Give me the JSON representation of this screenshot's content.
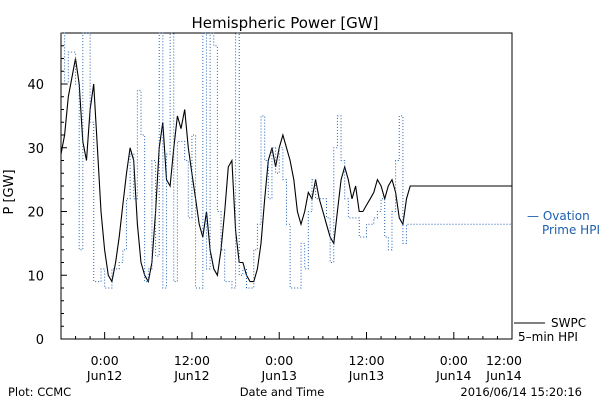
{
  "chart_data": {
    "type": "line",
    "title": "Hemispheric Power [GW]",
    "xlabel": "Date and Time",
    "ylabel": "P [GW]",
    "ylim": [
      0,
      48
    ],
    "yticks": [
      0,
      10,
      20,
      30,
      40
    ],
    "xlim": [
      0,
      62
    ],
    "xtick_hours": [
      6,
      18,
      30,
      42,
      54
    ],
    "xtick_labels": [
      [
        "0:00",
        "Jun12"
      ],
      [
        "12:00",
        "Jun12"
      ],
      [
        "0:00",
        "Jun13"
      ],
      [
        "12:00",
        "Jun13"
      ],
      [
        "0:00",
        "Jun14"
      ],
      [
        "12:00",
        "Jun14"
      ]
    ],
    "xtick_positions": [
      6,
      18,
      30,
      42,
      54,
      66
    ],
    "x_units": "hours since 2016-06-11 18:00",
    "grid": false,
    "series": [
      {
        "name": "SWPC 5-min HPI",
        "color": "#000000",
        "style": "solid",
        "x": [
          0,
          0.5,
          1,
          1.5,
          2,
          2.5,
          3,
          3.5,
          4,
          4.5,
          5,
          5.5,
          6,
          6.5,
          7,
          7.5,
          8,
          8.5,
          9,
          9.5,
          10,
          10.5,
          11,
          11.5,
          12,
          12.5,
          13,
          13.5,
          14,
          14.5,
          15,
          15.5,
          16,
          16.5,
          17,
          17.5,
          18,
          18.5,
          19,
          19.5,
          20,
          20.5,
          21,
          21.5,
          22,
          22.5,
          23,
          23.5,
          24,
          24.5,
          25,
          25.5,
          26,
          26.5,
          27,
          27.5,
          28,
          28.5,
          29,
          29.5,
          30,
          30.5,
          31,
          31.5,
          32,
          32.5,
          33,
          33.5,
          34,
          34.5,
          35,
          35.5,
          36,
          36.5,
          37,
          37.5,
          38,
          38.5,
          39,
          39.5,
          40,
          40.5,
          41,
          41.5,
          42,
          42.5,
          43,
          43.5,
          44,
          44.5,
          45,
          45.5,
          46,
          46.5,
          47,
          47.5,
          48,
          48.5,
          49,
          49.5,
          50,
          50.5,
          51,
          51.5,
          52,
          52.5,
          53,
          53.5,
          54,
          54.5,
          55,
          55.5,
          56,
          56.5,
          57,
          57.5,
          58,
          58.5,
          59,
          59.5,
          60,
          60.5,
          61,
          61.5,
          62
        ],
        "y": [
          29,
          32,
          38,
          41,
          44,
          40,
          31,
          28,
          36,
          40,
          30,
          20,
          14,
          10,
          9,
          12,
          16,
          21,
          26,
          30,
          28,
          18,
          12,
          10,
          9,
          12,
          20,
          30,
          34,
          25,
          24,
          30,
          35,
          33,
          36,
          30,
          26,
          22,
          18,
          16,
          20,
          14,
          11,
          10,
          14,
          20,
          27,
          28,
          17,
          12,
          12,
          10,
          9,
          9,
          11,
          15,
          22,
          28,
          30,
          27,
          30,
          32,
          30,
          28,
          25,
          20,
          18,
          20,
          23,
          22,
          25,
          22,
          20,
          18,
          16,
          15,
          20,
          25,
          27,
          25,
          22,
          24,
          20,
          20,
          21,
          22,
          23,
          25,
          24,
          22,
          24,
          25,
          23,
          19,
          18,
          22,
          24,
          24,
          24,
          24,
          24,
          24,
          24,
          24,
          24,
          24,
          24,
          24,
          24,
          24,
          24,
          24,
          24,
          24,
          24,
          24,
          24,
          24,
          24,
          24,
          24,
          24,
          24,
          24,
          24
        ]
      },
      {
        "name": "Ovation Prime HPI",
        "color": "#1f5fb0",
        "style": "dotted",
        "x": [
          0,
          0.5,
          1,
          1.5,
          2,
          2.5,
          3,
          3.5,
          4,
          4.5,
          5,
          5.5,
          6,
          6.5,
          7,
          7.5,
          8,
          8.5,
          9,
          9.5,
          10,
          10.5,
          11,
          11.5,
          12,
          12.5,
          13,
          13.5,
          14,
          14.5,
          15,
          15.5,
          16,
          16.5,
          17,
          17.5,
          18,
          18.5,
          19,
          19.5,
          20,
          20.5,
          21,
          21.5,
          22,
          22.5,
          23,
          23.5,
          24,
          24.5,
          25,
          25.5,
          26,
          26.5,
          27,
          27.5,
          28,
          28.5,
          29,
          29.5,
          30,
          30.5,
          31,
          31.5,
          32,
          32.5,
          33,
          33.5,
          34,
          34.5,
          35,
          35.5,
          36,
          36.5,
          37,
          37.5,
          38,
          38.5,
          39,
          39.5,
          40,
          40.5,
          41,
          41.5,
          42,
          42.5,
          43,
          43.5,
          44,
          44.5,
          45,
          45.5,
          46,
          46.5,
          47,
          47.5,
          48,
          48.5,
          49,
          49.5,
          50,
          50.5,
          51,
          51.5,
          52,
          52.5,
          53,
          53.5,
          54,
          54.5,
          55,
          55.5,
          56,
          56.5,
          57,
          57.5,
          58,
          58.5,
          59,
          59.5,
          60,
          60.5,
          61,
          61.5,
          62
        ],
        "y": [
          48,
          40,
          45,
          45,
          40,
          14,
          48,
          48,
          34,
          9,
          9,
          11,
          8,
          8,
          11,
          11,
          12,
          14,
          22,
          29,
          22,
          39,
          32,
          9,
          11,
          28,
          13,
          48,
          8,
          29,
          48,
          9,
          31,
          31,
          28,
          19,
          32,
          8,
          8,
          48,
          11,
          48,
          46,
          20,
          14,
          9,
          9,
          8,
          48,
          10,
          11,
          8,
          8,
          14,
          18,
          35,
          28,
          22,
          30,
          26,
          30,
          25,
          18,
          8,
          8,
          8,
          15,
          11,
          20,
          25,
          22,
          22,
          22,
          19,
          12,
          30,
          35,
          28,
          22,
          19,
          19,
          19,
          16,
          16,
          18,
          18,
          19,
          20,
          22,
          16,
          14,
          20,
          28,
          35,
          15,
          18,
          18,
          18,
          18,
          18,
          18,
          18,
          18,
          18,
          18,
          18,
          18,
          18,
          18,
          18,
          18,
          18,
          18,
          18,
          18,
          18,
          18,
          18,
          18,
          18,
          18,
          18,
          18,
          18,
          18
        ]
      }
    ],
    "legend": [
      {
        "text": "— Ovation",
        "text2": "Prime HPI",
        "color": "#1f5fb0"
      },
      {
        "text": "SWPC",
        "text2": "5–min HPI",
        "color": "#000000"
      }
    ],
    "legend_position": "right"
  },
  "footer": {
    "left": "Plot: CCMC",
    "center": "Date and Time",
    "right": "2016/06/14 15:20:16"
  }
}
